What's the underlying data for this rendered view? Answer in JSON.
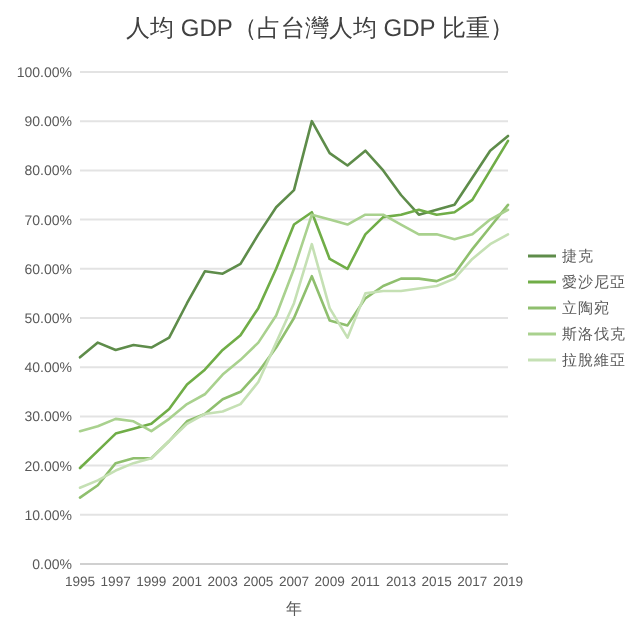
{
  "chart_data": {
    "type": "line",
    "title": "人均 GDP（占台灣人均 GDP 比重）",
    "xlabel": "年",
    "x": [
      1995,
      1996,
      1997,
      1998,
      1999,
      2000,
      2001,
      2002,
      2003,
      2004,
      2005,
      2006,
      2007,
      2008,
      2009,
      2010,
      2011,
      2012,
      2013,
      2014,
      2015,
      2016,
      2017,
      2018,
      2019
    ],
    "xlim": [
      1995,
      2019
    ],
    "xticks": [
      1995,
      1997,
      1999,
      2001,
      2003,
      2005,
      2007,
      2009,
      2011,
      2013,
      2015,
      2017,
      2019
    ],
    "ylim": [
      0,
      100
    ],
    "yticks": [
      {
        "value": 0,
        "label": "0.00%"
      },
      {
        "value": 10,
        "label": "10.00%"
      },
      {
        "value": 20,
        "label": "20.00%"
      },
      {
        "value": 30,
        "label": "30.00%"
      },
      {
        "value": 40,
        "label": "40.00%"
      },
      {
        "value": 50,
        "label": "50.00%"
      },
      {
        "value": 60,
        "label": "60.00%"
      },
      {
        "value": 70,
        "label": "70.00%"
      },
      {
        "value": 80,
        "label": "80.00%"
      },
      {
        "value": 90,
        "label": "90.00%"
      },
      {
        "value": 100,
        "label": "100.00%"
      }
    ],
    "grid": "y",
    "legend": "right",
    "marker": "none",
    "line_style": "solid",
    "series": [
      {
        "name": "捷克",
        "color": "#5e8c4a",
        "values": [
          42,
          45,
          43.5,
          44.5,
          44,
          46,
          53,
          59.5,
          59,
          61,
          67,
          72.5,
          76,
          90,
          83.5,
          81,
          84,
          80,
          75,
          71,
          72,
          73,
          78.5,
          84,
          87
        ]
      },
      {
        "name": "愛沙尼亞",
        "color": "#70ad47",
        "values": [
          19.5,
          23,
          26.5,
          27.5,
          28.5,
          31.5,
          36.5,
          39.5,
          43.5,
          46.5,
          52,
          60,
          69,
          71.5,
          62,
          60,
          67,
          70.5,
          71,
          72,
          71,
          71.5,
          74,
          80,
          86
        ]
      },
      {
        "name": "立陶宛",
        "color": "#8fbf6e",
        "values": [
          13.5,
          16,
          20.5,
          21.5,
          21.5,
          25,
          29,
          30.5,
          33.5,
          35,
          39,
          44,
          50,
          58.5,
          49.5,
          48.5,
          54,
          56.5,
          58,
          58,
          57.5,
          59,
          64,
          68.5,
          73
        ]
      },
      {
        "name": "斯洛伐克",
        "color": "#a9d18e",
        "values": [
          27,
          28,
          29.5,
          29,
          27,
          29.5,
          32.5,
          34.5,
          38.5,
          41.5,
          45,
          50.5,
          60,
          71,
          70,
          69,
          71,
          71,
          69,
          67,
          67,
          66,
          67,
          70,
          72
        ]
      },
      {
        "name": "拉脫維亞",
        "color": "#c5e0b4",
        "values": [
          15.5,
          17,
          19,
          20.5,
          21.5,
          25,
          28.5,
          30.5,
          31,
          32.5,
          37,
          45,
          53,
          65,
          52,
          46,
          55,
          55.5,
          55.5,
          56,
          56.5,
          58,
          62,
          65,
          67
        ]
      }
    ]
  }
}
